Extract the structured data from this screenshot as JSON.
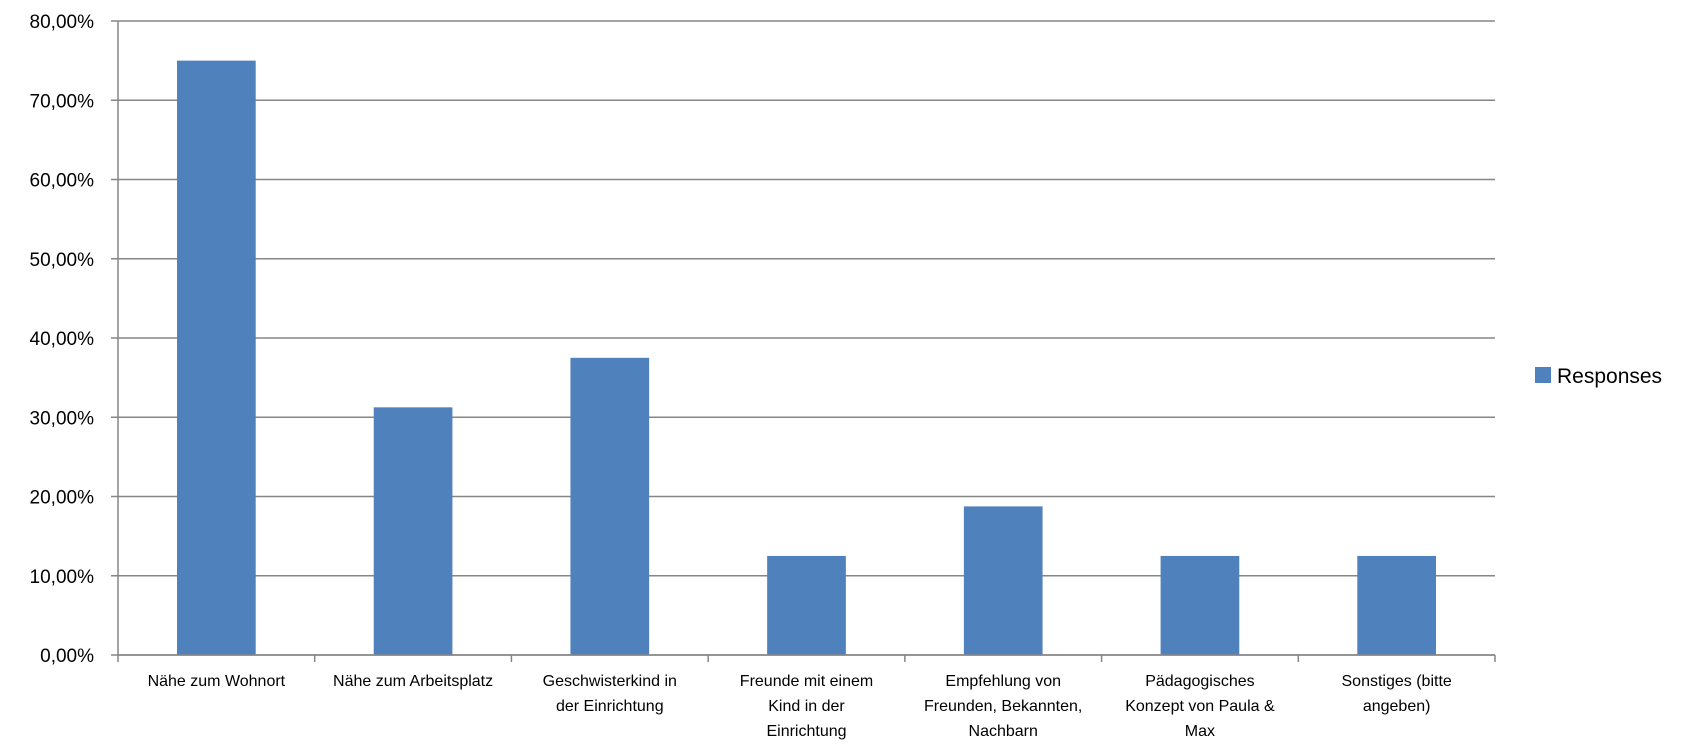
{
  "chart_data": {
    "type": "bar",
    "categories": [
      [
        "Nähe zum Wohnort"
      ],
      [
        "Nähe zum Arbeitsplatz"
      ],
      [
        "Geschwisterkind in",
        "der Einrichtung"
      ],
      [
        "Freunde mit einem",
        "Kind in der",
        "Einrichtung"
      ],
      [
        "Empfehlung von",
        "Freunden, Bekannten,",
        "Nachbarn"
      ],
      [
        "Pädagogisches",
        "Konzept von Paula &",
        "Max"
      ],
      [
        "Sonstiges (bitte",
        "angeben)"
      ]
    ],
    "series": [
      {
        "name": "Responses",
        "color": "#4F81BD",
        "values": [
          75.0,
          31.25,
          37.5,
          12.5,
          18.75,
          12.5,
          12.5
        ]
      }
    ],
    "ylim": [
      0,
      80
    ],
    "yticks": [
      0,
      10,
      20,
      30,
      40,
      50,
      60,
      70,
      80
    ],
    "ytick_labels": [
      "0,00%",
      "10,00%",
      "20,00%",
      "30,00%",
      "40,00%",
      "50,00%",
      "60,00%",
      "70,00%",
      "80,00%"
    ],
    "grid": true,
    "legend": "right",
    "title": "",
    "xlabel": "",
    "ylabel": ""
  }
}
